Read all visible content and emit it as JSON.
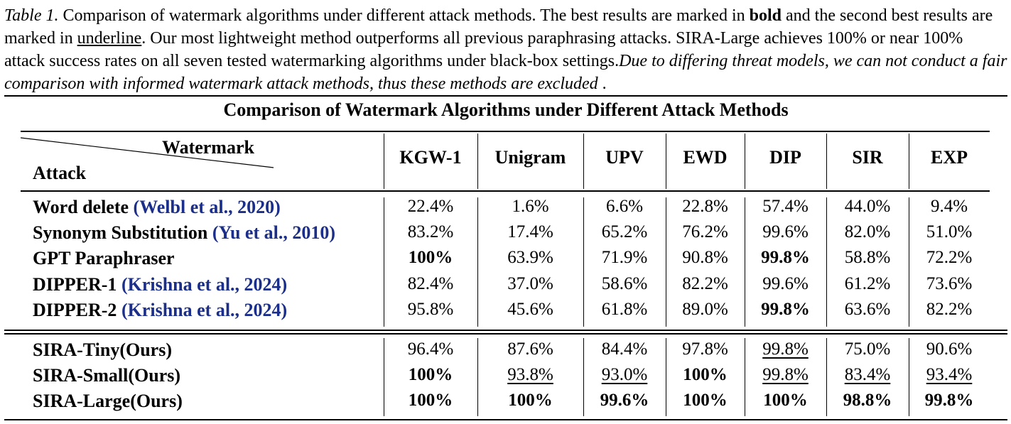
{
  "caption": {
    "label": "Table 1.",
    "part1": " Comparison of watermark algorithms under different attack methods. The best results are marked in ",
    "bold_word": "bold",
    "part2": " and the second best results are marked in ",
    "underline_word": "underline",
    "part3": ". Our most lightweight method outperforms all previous paraphrasing attacks. SIRA-Large achieves 100% or near 100% attack success rates on all seven tested watermarking algorithms under black-box settings.",
    "italic_tail": "Due to differing threat models, we can not conduct a fair comparison with informed watermark attack methods, thus these methods are excluded",
    "end": " ."
  },
  "table": {
    "title": "Comparison of Watermark Algorithms under Different Attack Methods",
    "corner_top": "Watermark",
    "corner_bottom": "Attack",
    "columns": [
      "KGW-1",
      "Unigram",
      "UPV",
      "EWD",
      "DIP",
      "SIR",
      "EXP"
    ],
    "baselines": [
      {
        "name": "Word delete ",
        "cite": "(Welbl et al., 2020)",
        "values": [
          "22.4%",
          "1.6%",
          "6.6%",
          "22.8%",
          "57.4%",
          "44.0%",
          "9.4%"
        ]
      },
      {
        "name": "Synonym Substitution ",
        "cite": "(Yu et al., 2010)",
        "values": [
          "83.2%",
          "17.4%",
          "65.2%",
          "76.2%",
          "99.6%",
          "82.0%",
          "51.0%"
        ]
      },
      {
        "name": "GPT Paraphraser",
        "cite": "",
        "values": [
          "100%",
          "63.9%",
          "71.9%",
          "90.8%",
          "99.8%",
          "58.8%",
          "72.2%"
        ]
      },
      {
        "name": "DIPPER-1 ",
        "cite": "(Krishna et al., 2024)",
        "values": [
          "82.4%",
          "37.0%",
          "58.6%",
          "82.2%",
          "99.6%",
          "61.2%",
          "73.6%"
        ]
      },
      {
        "name": "DIPPER-2 ",
        "cite": "(Krishna et al., 2024)",
        "values": [
          "95.8%",
          "45.6%",
          "61.8%",
          "89.0%",
          "99.8%",
          "63.6%",
          "82.2%"
        ]
      }
    ],
    "ours": [
      {
        "name": "SIRA-Tiny(Ours)",
        "values": [
          "96.4%",
          "87.6%",
          "84.4%",
          "97.8%",
          "99.8%",
          "75.0%",
          "90.6%"
        ]
      },
      {
        "name": "SIRA-Small(Ours)",
        "values": [
          "100%",
          "93.8%",
          "93.0%",
          "100%",
          "99.8%",
          "83.4%",
          "93.4%"
        ]
      },
      {
        "name": "SIRA-Large(Ours)",
        "values": [
          "100%",
          "100%",
          "99.6%",
          "100%",
          "100%",
          "98.8%",
          "99.8%"
        ]
      }
    ]
  }
}
